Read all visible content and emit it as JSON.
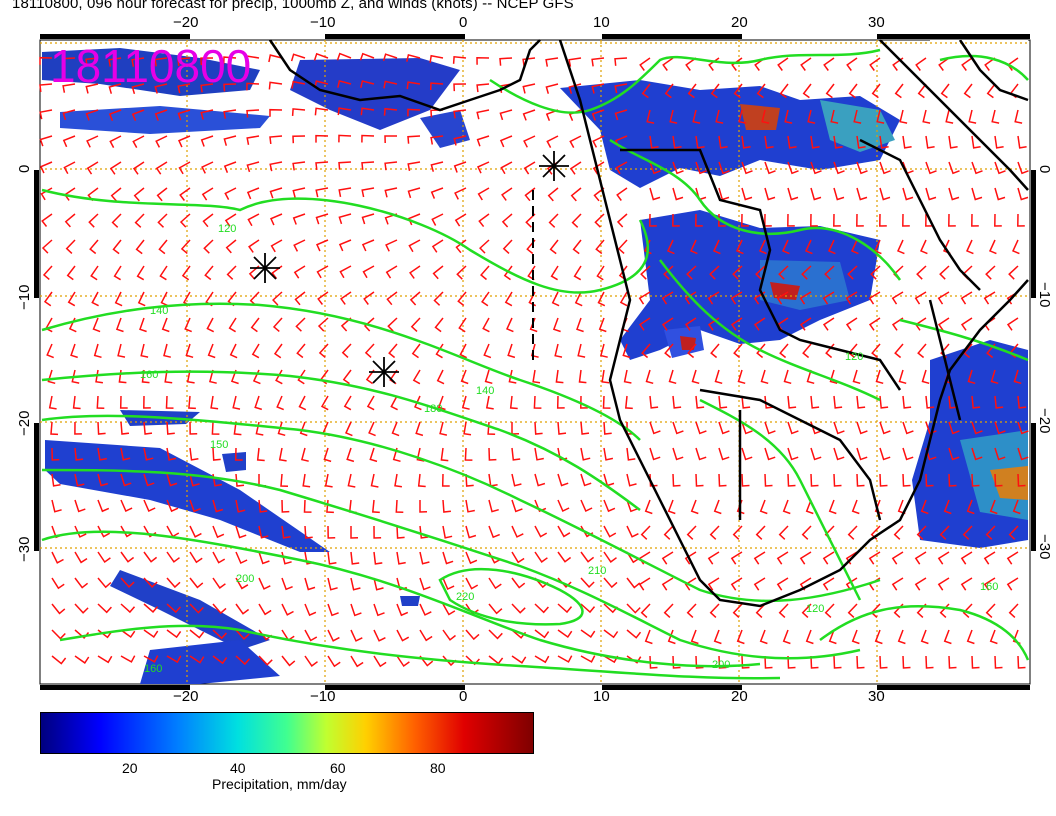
{
  "title": "18110800, 096 hour forecast for precip, 1000mb Z, and winds (knots) -- NCEP GFS",
  "timestamp": "18110800",
  "longitude_ticks": [
    "−20",
    "−10",
    "0",
    "10",
    "20",
    "30"
  ],
  "latitude_ticks": [
    "0",
    "−10",
    "−20",
    "−30"
  ],
  "contour_labels": [
    "120",
    "140",
    "150",
    "160",
    "180",
    "200",
    "220",
    "120",
    "160",
    "200",
    "210",
    "120",
    "140",
    "160"
  ],
  "colorbar": {
    "ticks": [
      "20",
      "40",
      "60",
      "80"
    ],
    "label": "Precipitation, mm/day"
  },
  "colors": {
    "contours": "#22dd22",
    "wind_barbs": "#ff0000",
    "gridlines": "#e0a000",
    "timestamp": "#e600e6"
  },
  "map_features": {
    "storm_markers": 3,
    "barb_color": "red",
    "coastline": "black"
  }
}
